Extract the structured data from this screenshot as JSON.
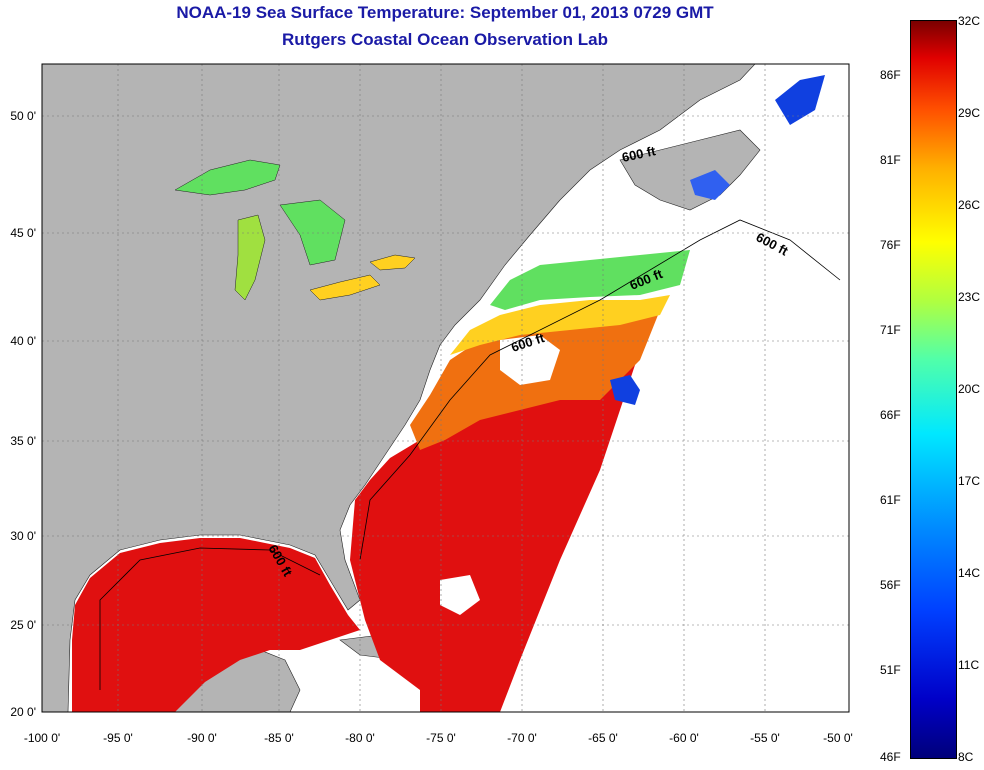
{
  "title": "NOAA-19 Sea Surface Temperature:  September 01, 2013 0729 GMT",
  "subtitle": "Rutgers Coastal Ocean Observation Lab",
  "map": {
    "lat_ticks": [
      {
        "label": "50 0'",
        "value": 50
      },
      {
        "label": "45 0'",
        "value": 45
      },
      {
        "label": "40 0'",
        "value": 40
      },
      {
        "label": "35 0'",
        "value": 35
      },
      {
        "label": "30 0'",
        "value": 30
      },
      {
        "label": "25 0'",
        "value": 25
      },
      {
        "label": "20 0'",
        "value": 20
      }
    ],
    "lon_ticks": [
      {
        "label": "-100 0'",
        "value": -100
      },
      {
        "label": "-95 0'",
        "value": -95
      },
      {
        "label": "-90 0'",
        "value": -90
      },
      {
        "label": "-85 0'",
        "value": -85
      },
      {
        "label": "-80 0'",
        "value": -80
      },
      {
        "label": "-75 0'",
        "value": -75
      },
      {
        "label": "-70 0'",
        "value": -70
      },
      {
        "label": "-65 0'",
        "value": -65
      },
      {
        "label": "-60 0'",
        "value": -60
      },
      {
        "label": "-55 0'",
        "value": -55
      },
      {
        "label": "-50 0'",
        "value": -50
      }
    ],
    "contour_label": "600 ft",
    "colors": {
      "land": "#b4b4b4",
      "no_data": "#ffffff",
      "warm": "#e01010",
      "gulf_stream": "#f07010",
      "mid": "#ffd020",
      "cool": "#60e060",
      "cold": "#1040e0"
    }
  },
  "colorbar": {
    "fahrenheit": [
      "86F",
      "81F",
      "76F",
      "71F",
      "66F",
      "61F",
      "56F",
      "51F",
      "46F"
    ],
    "celsius": [
      "32C",
      "29C",
      "26C",
      "23C",
      "20C",
      "17C",
      "14C",
      "11C",
      "8C"
    ]
  }
}
